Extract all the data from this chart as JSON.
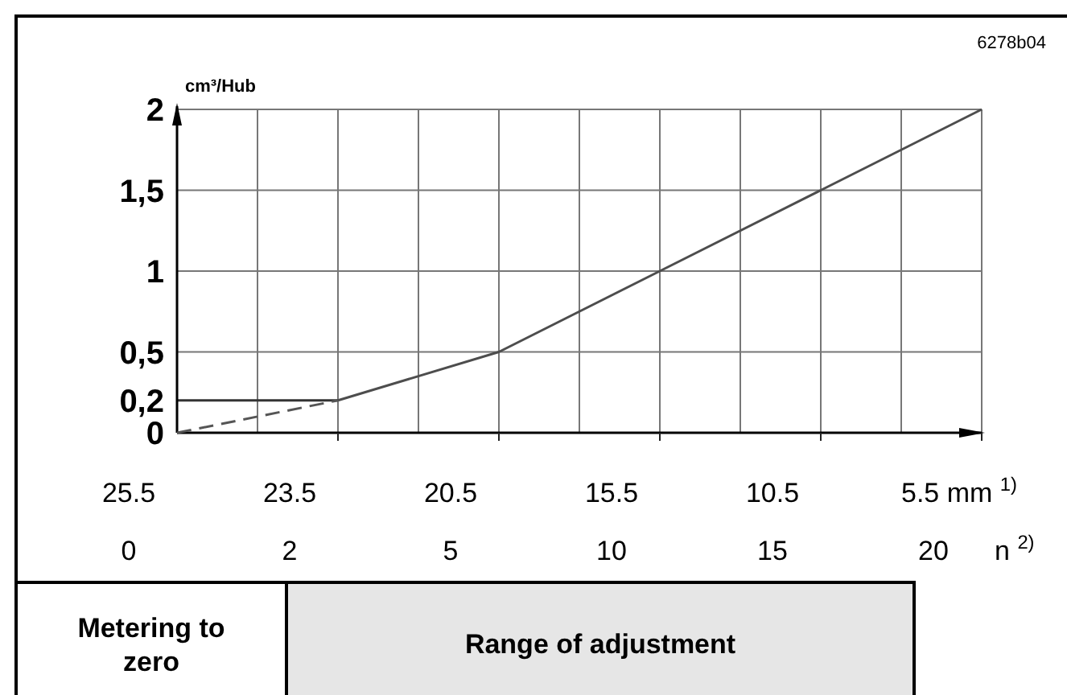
{
  "chart_data": {
    "type": "line",
    "ylabel": "cm³/Hub",
    "xlabel": "n $^{2)}$",
    "categories": [
      "0",
      "2",
      "5",
      "10",
      "15",
      "20"
    ],
    "series": [
      {
        "color": "#555555",
        "line_style": "dashed",
        "values": [
          0,
          0.2,
          null,
          null,
          null,
          null
        ]
      },
      {
        "color": "#4d4d4d",
        "line_style": "solid",
        "values": [
          null,
          0.2,
          0.5,
          1,
          1.5,
          2
        ]
      }
    ],
    "ylim": [
      0,
      2
    ],
    "yticks": [
      0,
      {
        "value": 0.2,
        "label": "0,2"
      },
      {
        "value": 0.5,
        "label": "0,5"
      },
      1,
      {
        "value": 1.5,
        "label": "1,5"
      },
      2
    ],
    "grid": true,
    "ref_lines": [
      {
        "axis": "y",
        "value": 0.2,
        "color": "#333333"
      }
    ],
    "annotations": [
      "6278b04",
      "25.5",
      "23.5",
      "20.5",
      "15.5",
      "10.5",
      "5.5 mm $^{1)}$",
      "Metering to zero",
      "Range of adjustment"
    ]
  }
}
